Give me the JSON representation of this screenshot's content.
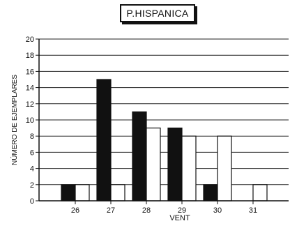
{
  "chart_data": {
    "type": "bar",
    "title": "P.HISPANICA",
    "xlabel": "VENT",
    "ylabel": "NÚMERO DE EJEMPLARES",
    "categories": [
      "26",
      "27",
      "28",
      "29",
      "30",
      "31"
    ],
    "series": [
      {
        "values": [
          2,
          15,
          11,
          9,
          2,
          0
        ],
        "color": "#111111"
      },
      {
        "values": [
          2,
          2,
          9,
          8,
          8,
          2
        ],
        "color": "#ffffff"
      }
    ],
    "ylim": [
      0,
      20
    ],
    "yticks": [
      0,
      2,
      4,
      6,
      8,
      10,
      12,
      14,
      16,
      18,
      20
    ],
    "grid": true
  }
}
